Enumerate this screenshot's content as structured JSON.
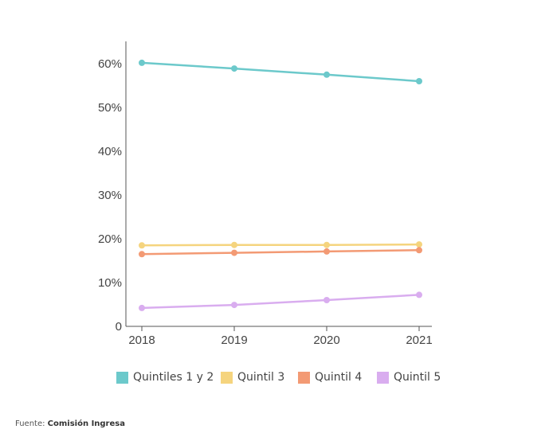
{
  "chart_data": {
    "type": "line",
    "x": [
      "2018",
      "2019",
      "2020",
      "2021"
    ],
    "y_ticks": [
      "0",
      "10%",
      "20%",
      "30%",
      "40%",
      "50%",
      "60%"
    ],
    "ylim": [
      0,
      65
    ],
    "grid": false,
    "legend_position": "bottom",
    "series": [
      {
        "name": "Quintiles 1 y 2",
        "color": "#6cc9cb",
        "values": [
          60.2,
          58.9,
          57.5,
          56.0
        ]
      },
      {
        "name": "Quintil 3",
        "color": "#f5d47e",
        "values": [
          18.5,
          18.6,
          18.6,
          18.7
        ]
      },
      {
        "name": "Quintil 4",
        "color": "#f39a74",
        "values": [
          16.5,
          16.8,
          17.1,
          17.4
        ]
      },
      {
        "name": "Quintil 5",
        "color": "#d9adef",
        "values": [
          4.2,
          4.9,
          6.0,
          7.2
        ]
      }
    ]
  },
  "source": {
    "prefix": "Fuente: ",
    "name": "Comisión Ingresa"
  }
}
